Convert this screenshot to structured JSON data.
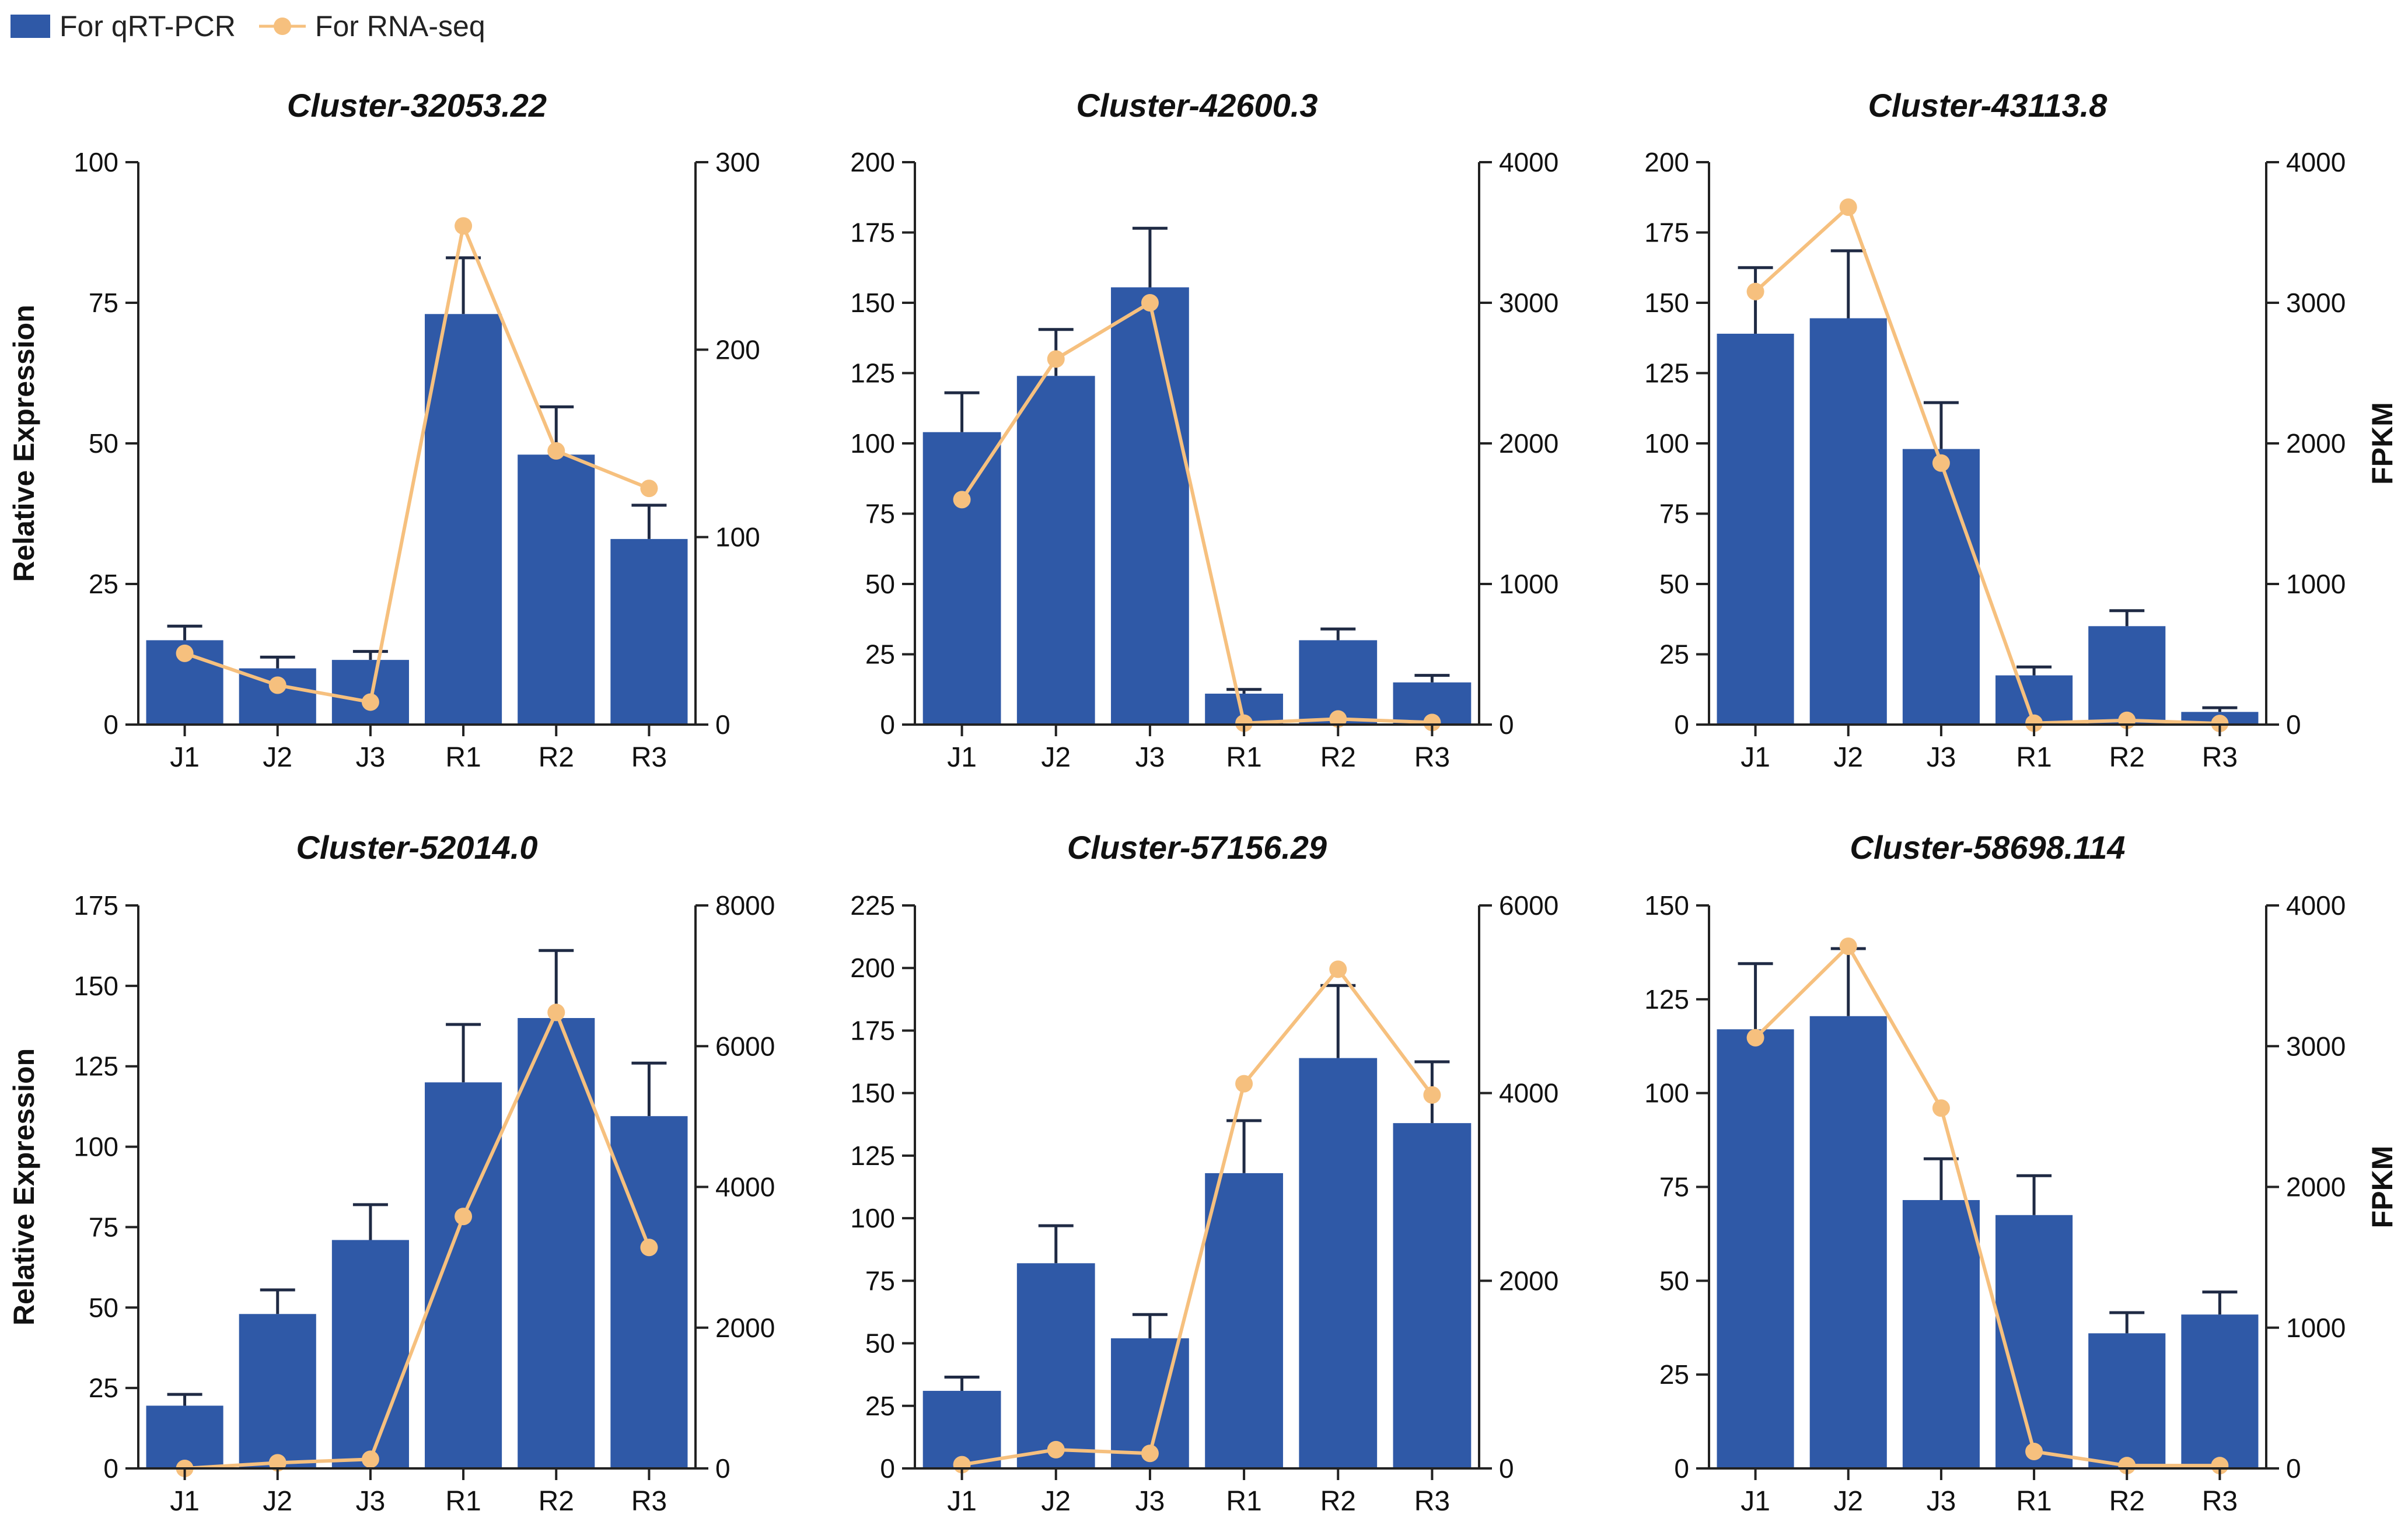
{
  "colors": {
    "bar": "#2f59a7",
    "line": "#f6c07e",
    "axis": "#222222",
    "error": "#1f2a44"
  },
  "legend": {
    "bar_label": "For qRT-PCR",
    "line_label": "For RNA-seq"
  },
  "chart_data": [
    {
      "type": "bar+line",
      "title": "Cluster-32053.22",
      "categories": [
        "J1",
        "J2",
        "J3",
        "R1",
        "R2",
        "R3"
      ],
      "ylabel": "Relative Expression",
      "y2label": "",
      "ylim": [
        0,
        100
      ],
      "yticks": [
        0,
        25,
        50,
        75,
        100
      ],
      "y2lim": [
        0,
        300
      ],
      "y2ticks": [
        0,
        100,
        200,
        300
      ],
      "series": [
        {
          "name": "For qRT-PCR",
          "axis": "left",
          "values": [
            15,
            10,
            11.5,
            73,
            48,
            33
          ],
          "errors": [
            2.5,
            2,
            1.5,
            10,
            8.5,
            6
          ]
        },
        {
          "name": "For RNA-seq",
          "axis": "right",
          "values": [
            38,
            21,
            12,
            266,
            146,
            126
          ]
        }
      ]
    },
    {
      "type": "bar+line",
      "title": "Cluster-42600.3",
      "categories": [
        "J1",
        "J2",
        "J3",
        "R1",
        "R2",
        "R3"
      ],
      "ylabel": "",
      "y2label": "",
      "ylim": [
        0,
        200
      ],
      "yticks": [
        0,
        25,
        50,
        75,
        100,
        125,
        150,
        175,
        200
      ],
      "y2lim": [
        0,
        4000
      ],
      "y2ticks": [
        0,
        1000,
        2000,
        3000,
        4000
      ],
      "series": [
        {
          "name": "For qRT-PCR",
          "axis": "left",
          "values": [
            104,
            124,
            155.5,
            11,
            30,
            15
          ],
          "errors": [
            14,
            16.5,
            21,
            1.5,
            4,
            2.5
          ]
        },
        {
          "name": "For RNA-seq",
          "axis": "right",
          "values": [
            1600,
            2600,
            3000,
            10,
            40,
            15
          ]
        }
      ]
    },
    {
      "type": "bar+line",
      "title": "Cluster-43113.8",
      "categories": [
        "J1",
        "J2",
        "J3",
        "R1",
        "R2",
        "R3"
      ],
      "ylabel": "",
      "y2label": "FPKM",
      "ylim": [
        0,
        200
      ],
      "yticks": [
        0,
        25,
        50,
        75,
        100,
        125,
        150,
        175,
        200
      ],
      "y2lim": [
        0,
        4000
      ],
      "y2ticks": [
        0,
        1000,
        2000,
        3000,
        4000
      ],
      "series": [
        {
          "name": "For qRT-PCR",
          "axis": "left",
          "values": [
            139,
            144.5,
            98,
            17.5,
            35,
            4.5
          ],
          "errors": [
            23.5,
            24,
            16.5,
            3,
            5.5,
            1.5
          ]
        },
        {
          "name": "For RNA-seq",
          "axis": "right",
          "values": [
            3080,
            3680,
            1860,
            10,
            30,
            8
          ]
        }
      ]
    },
    {
      "type": "bar+line",
      "title": "Cluster-52014.0",
      "categories": [
        "J1",
        "J2",
        "J3",
        "R1",
        "R2",
        "R3"
      ],
      "ylabel": "Relative Expression",
      "y2label": "",
      "ylim": [
        0,
        175
      ],
      "yticks": [
        0,
        25,
        50,
        75,
        100,
        125,
        150,
        175
      ],
      "y2lim": [
        0,
        8000
      ],
      "y2ticks": [
        0,
        2000,
        4000,
        6000,
        8000
      ],
      "series": [
        {
          "name": "For qRT-PCR",
          "axis": "left",
          "values": [
            19.5,
            48,
            71,
            120,
            140,
            109.5
          ],
          "errors": [
            3.5,
            7.5,
            11,
            18,
            21,
            16.5
          ]
        },
        {
          "name": "For RNA-seq",
          "axis": "right",
          "values": [
            0,
            80,
            130,
            3580,
            6480,
            3140
          ]
        }
      ]
    },
    {
      "type": "bar+line",
      "title": "Cluster-57156.29",
      "categories": [
        "J1",
        "J2",
        "J3",
        "R1",
        "R2",
        "R3"
      ],
      "ylabel": "",
      "y2label": "",
      "ylim": [
        0,
        225
      ],
      "yticks": [
        0,
        25,
        50,
        75,
        100,
        125,
        150,
        175,
        200,
        225
      ],
      "y2lim": [
        0,
        6000
      ],
      "y2ticks": [
        0,
        2000,
        4000,
        6000
      ],
      "series": [
        {
          "name": "For qRT-PCR",
          "axis": "left",
          "values": [
            31,
            82,
            52,
            118,
            164,
            138
          ],
          "errors": [
            5.5,
            15,
            9.5,
            21,
            29,
            24.5
          ]
        },
        {
          "name": "For RNA-seq",
          "axis": "right",
          "values": [
            40,
            200,
            160,
            4100,
            5320,
            3980
          ]
        }
      ]
    },
    {
      "type": "bar+line",
      "title": "Cluster-58698.114",
      "categories": [
        "J1",
        "J2",
        "J3",
        "R1",
        "R2",
        "R3"
      ],
      "ylabel": "",
      "y2label": "FPKM",
      "ylim": [
        0,
        150
      ],
      "yticks": [
        0,
        25,
        50,
        75,
        100,
        125,
        150
      ],
      "y2lim": [
        0,
        4000
      ],
      "y2ticks": [
        0,
        1000,
        2000,
        3000,
        4000
      ],
      "series": [
        {
          "name": "For qRT-PCR",
          "axis": "left",
          "values": [
            117,
            120.5,
            71.5,
            67.5,
            36,
            41
          ],
          "errors": [
            17.5,
            18,
            11,
            10.5,
            5.5,
            6
          ]
        },
        {
          "name": "For RNA-seq",
          "axis": "right",
          "values": [
            3060,
            3710,
            2560,
            120,
            20,
            20
          ]
        }
      ]
    }
  ]
}
